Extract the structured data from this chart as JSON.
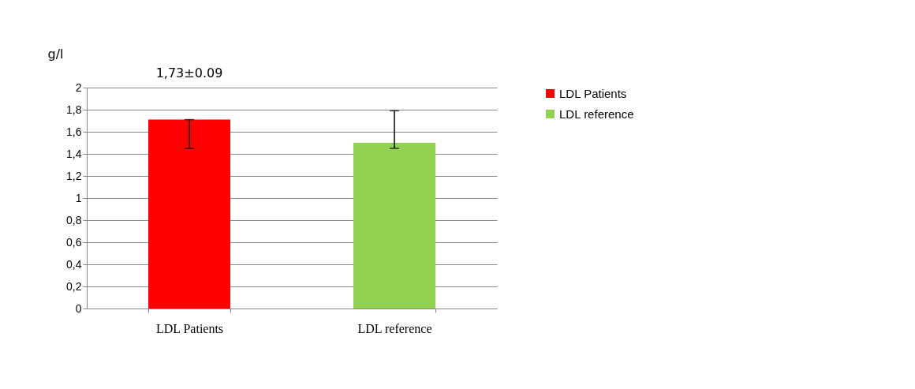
{
  "chart_data": {
    "type": "bar",
    "ylabel": "g/l",
    "categories": [
      "LDL Patients",
      "LDL reference"
    ],
    "series": [
      {
        "name": "LDL Patients",
        "color": "#ff0000",
        "values": [
          1.71,
          null
        ],
        "errors": [
          [
            1.45,
            1.71
          ],
          null
        ]
      },
      {
        "name": "LDL reference",
        "color": "#92d050",
        "values": [
          null,
          1.5
        ],
        "errors": [
          null,
          [
            1.45,
            1.79
          ]
        ]
      }
    ],
    "ylim": [
      0,
      2
    ],
    "yticks": [
      0,
      {
        "value": 0.2,
        "label": "0,2"
      },
      {
        "value": 0.4,
        "label": "0,4"
      },
      {
        "value": 0.6,
        "label": "0,6"
      },
      {
        "value": 0.8,
        "label": "0,8"
      },
      1,
      {
        "value": 1.2,
        "label": "1,2"
      },
      {
        "value": 1.4,
        "label": "1,4"
      },
      {
        "value": 1.6,
        "label": "1,6"
      },
      {
        "value": 1.8,
        "label": "1,8"
      },
      2
    ],
    "grid": "y",
    "legend": "right",
    "annotations": [
      "1,73±0.09"
    ]
  }
}
